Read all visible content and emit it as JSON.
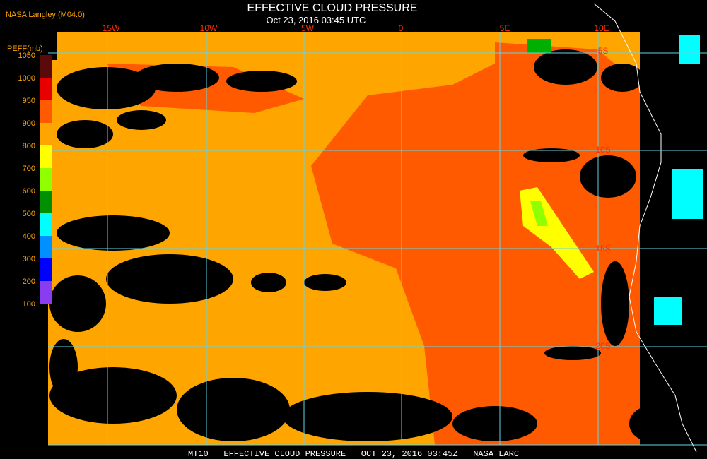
{
  "header": {
    "source": "NASA Langley (M04.0)",
    "title": "EFFECTIVE CLOUD PRESSURE",
    "time": "Oct 23, 2016 03:45 UTC"
  },
  "colorbar": {
    "title": "PEFF(mb)",
    "labels": [
      1050,
      1000,
      950,
      900,
      800,
      700,
      600,
      500,
      400,
      300,
      200,
      100
    ],
    "colors": [
      "#5a0a0a",
      "#e80000",
      "#ff5a00",
      "#ffa500",
      "#ffff00",
      "#90ff00",
      "#009000",
      "#00ffff",
      "#0090ff",
      "#0000ff",
      "#8a3cf0"
    ]
  },
  "grid": {
    "longitudes": [
      "15W",
      "10W",
      "5W",
      "0",
      "5E",
      "10E"
    ],
    "latitudes": [
      "5S",
      "10S",
      "15S",
      "20S"
    ]
  },
  "footer": "MT10   EFFECTIVE CLOUD PRESSURE   OCT 23, 2016 03:45Z   NASA LARC"
}
